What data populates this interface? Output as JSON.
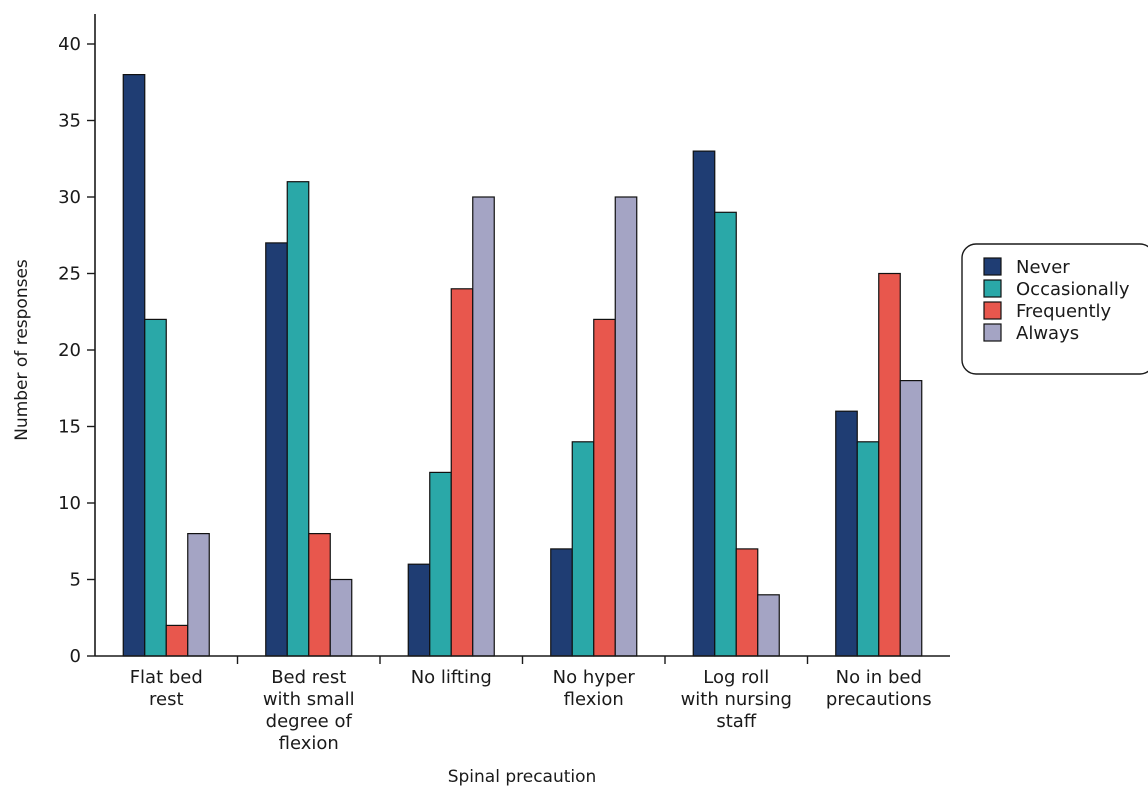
{
  "chart_data": {
    "type": "bar",
    "title": "",
    "xlabel": "Spinal precaution",
    "ylabel": "Number of responses",
    "ylim": [
      0,
      40
    ],
    "yticks": [
      0,
      5,
      10,
      15,
      20,
      25,
      30,
      35,
      40
    ],
    "grid": false,
    "legend_position": "right",
    "categories": [
      [
        "Flat bed",
        "rest"
      ],
      [
        "Bed rest",
        "with small",
        "degree of",
        "flexion"
      ],
      [
        "No lifting"
      ],
      [
        "No hyper",
        "flexion"
      ],
      [
        "Log roll",
        "with nursing",
        "staff"
      ],
      [
        "No in bed",
        "precautions"
      ]
    ],
    "series": [
      {
        "name": "Never",
        "color": "#1f3d73",
        "values": [
          38,
          27,
          6,
          7,
          33,
          16
        ]
      },
      {
        "name": "Occasionally",
        "color": "#2aa8a8",
        "values": [
          22,
          31,
          12,
          14,
          29,
          14
        ]
      },
      {
        "name": "Frequently",
        "color": "#e8574d",
        "values": [
          2,
          8,
          24,
          22,
          7,
          25
        ]
      },
      {
        "name": "Always",
        "color": "#a4a4c4",
        "values": [
          8,
          5,
          30,
          30,
          4,
          18
        ]
      }
    ]
  }
}
